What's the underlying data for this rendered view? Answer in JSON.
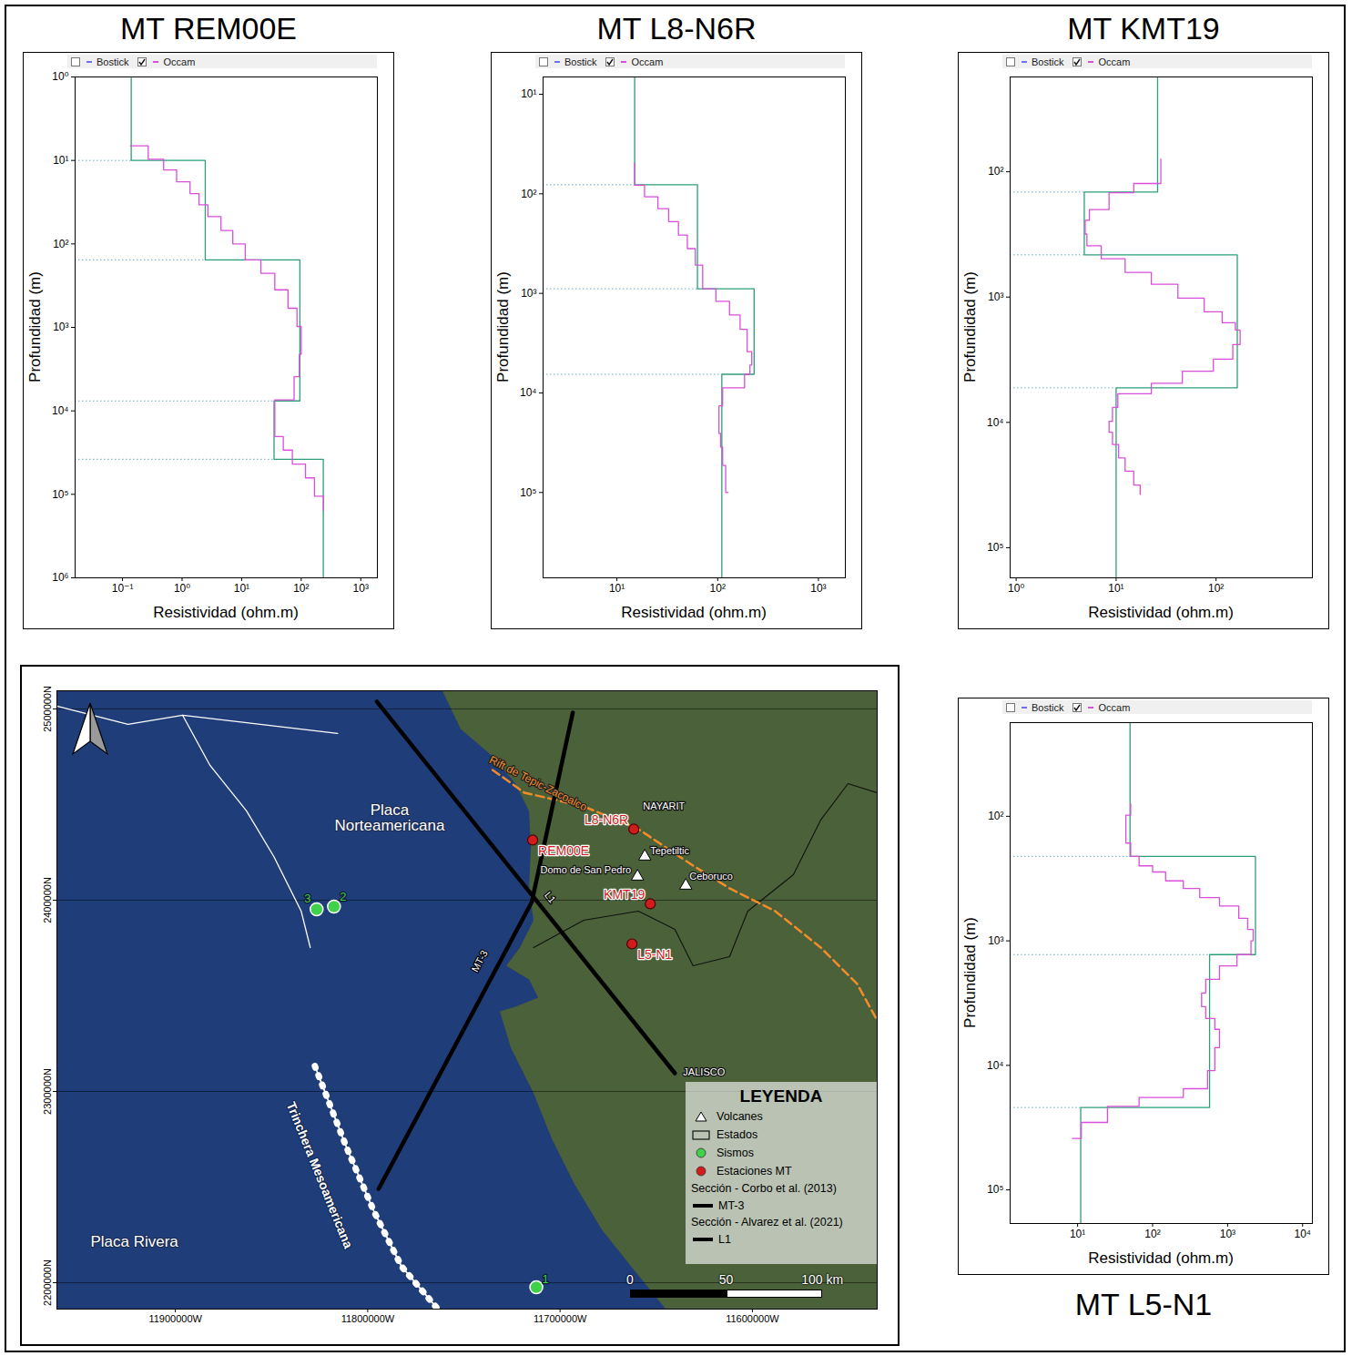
{
  "chart_data": [
    {
      "type": "line",
      "title": "MT REM00E",
      "x_label": "Resistividad (ohm.m)",
      "y_label": "Profundidad (m)",
      "log": true,
      "xlim": [
        0.016,
        1900
      ],
      "ylim": [
        1,
        1000000
      ],
      "xticks": [
        {
          "value": 0.1,
          "label": "10⁻¹"
        },
        {
          "value": 1,
          "label": "10⁰"
        },
        {
          "value": 10,
          "label": "10¹"
        },
        {
          "value": 100,
          "label": "10²"
        },
        {
          "value": 1000,
          "label": "10³"
        }
      ],
      "yticks": [
        {
          "value": 1,
          "label": "10⁰"
        },
        {
          "value": 10,
          "label": "10¹"
        },
        {
          "value": 100,
          "label": "10²"
        },
        {
          "value": 1000,
          "label": "10³"
        },
        {
          "value": 10000,
          "label": "10⁴"
        },
        {
          "value": 100000,
          "label": "10⁵"
        },
        {
          "value": 1000000,
          "label": "10⁶"
        }
      ],
      "series": [
        {
          "name": "Bostick",
          "color": "#6f6ff0",
          "checked": false,
          "line_style": "step",
          "depth": [],
          "resistivity": []
        },
        {
          "name": "Occam",
          "color": "#d94fd9",
          "checked": true,
          "line_style": "step",
          "depth": [
            6.7,
            6.7,
            9.7,
            13,
            18,
            25,
            34,
            47,
            69,
            100,
            155,
            225,
            355,
            590,
            975,
            2100,
            3900,
            7400,
            13800,
            20300,
            29500,
            43500,
            63500,
            105000,
            155000
          ],
          "resistivity": [
            0.136,
            0.27,
            0.49,
            0.81,
            1.36,
            1.92,
            2.71,
            4.5,
            7.1,
            11.5,
            21,
            36,
            60,
            85,
            100,
            93,
            76,
            36,
            36,
            50,
            71,
            118,
            167,
            237,
            237
          ]
        },
        {
          "color": "#2e9e7a",
          "line_style": "step",
          "depth": [
            1,
            10,
            155,
            7600,
            38000,
            1000000
          ],
          "resistivity": [
            0.14,
            2.45,
            95,
            35,
            235,
            235
          ]
        }
      ]
    },
    {
      "type": "line",
      "title": "MT L8-N6R",
      "x_label": "Resistividad (ohm.m)",
      "y_label": "Profundidad (m)",
      "log": true,
      "xlim": [
        1.85,
        1850
      ],
      "ylim": [
        6.7,
        720000
      ],
      "xticks": [
        {
          "value": 10,
          "label": "10¹"
        },
        {
          "value": 100,
          "label": "10²"
        },
        {
          "value": 1000,
          "label": "10³"
        }
      ],
      "yticks": [
        {
          "value": 10,
          "label": "10¹"
        },
        {
          "value": 100,
          "label": "10²"
        },
        {
          "value": 1000,
          "label": "10³"
        },
        {
          "value": 10000,
          "label": "10⁴"
        },
        {
          "value": 100000,
          "label": "10⁵"
        }
      ],
      "series": [
        {
          "name": "Bostick",
          "color": "#6f6ff0",
          "checked": false,
          "line_style": "step",
          "depth": [],
          "resistivity": []
        },
        {
          "name": "Occam",
          "color": "#d94fd9",
          "checked": true,
          "line_style": "step",
          "depth": [
            49,
            82,
            107,
            141,
            190,
            260,
            355,
            520,
            900,
            1200,
            1650,
            2300,
            3850,
            5250,
            6500,
            8900,
            13500,
            18700,
            25500,
            35000,
            53500,
            100000
          ],
          "resistivity": [
            15,
            18.8,
            25.5,
            32.6,
            40.8,
            50,
            60,
            71,
            96,
            131,
            167,
            196,
            218,
            209,
            185,
            112,
            103,
            103,
            107,
            112,
            120,
            127
          ]
        },
        {
          "color": "#2e9e7a",
          "line_style": "step",
          "depth": [
            6.7,
            81,
            900,
            6500,
            720000
          ],
          "resistivity": [
            15,
            63,
            230,
            110,
            110
          ]
        }
      ]
    },
    {
      "type": "line",
      "title": "MT KMT19",
      "x_label": "Resistividad (ohm.m)",
      "y_label": "Profundidad (m)",
      "log": true,
      "xlim": [
        0.87,
        920
      ],
      "ylim": [
        17.5,
        174000
      ],
      "xticks": [
        {
          "value": 1,
          "label": "10⁰"
        },
        {
          "value": 10,
          "label": "10¹"
        },
        {
          "value": 100,
          "label": "10²"
        }
      ],
      "yticks": [
        {
          "value": 100,
          "label": "10²"
        },
        {
          "value": 1000,
          "label": "10³"
        },
        {
          "value": 10000,
          "label": "10⁴"
        },
        {
          "value": 100000,
          "label": "10⁵"
        }
      ],
      "series": [
        {
          "name": "Bostick",
          "color": "#6f6ff0",
          "checked": false,
          "line_style": "step",
          "depth": [],
          "resistivity": []
        },
        {
          "name": "Occam",
          "color": "#d94fd9",
          "checked": true,
          "line_style": "step",
          "depth": [
            79,
            124,
            147,
            200,
            244,
            314,
            390,
            495,
            635,
            790,
            1020,
            1310,
            1600,
            1830,
            2390,
            3130,
            3900,
            4880,
            5900,
            7600,
            9800,
            12000,
            15000,
            19200,
            24500,
            31600,
            37500
          ],
          "resistivity": [
            28,
            15,
            8.5,
            5.4,
            4.9,
            5.1,
            7.1,
            12.3,
            22.5,
            41.5,
            76,
            115,
            156,
            174,
            147,
            94,
            46,
            22.5,
            10.4,
            9.2,
            8.5,
            9.2,
            10.6,
            12.3,
            15,
            17.4,
            17.4
          ]
        },
        {
          "color": "#2e9e7a",
          "line_style": "step",
          "depth": [
            17.5,
            145,
            460,
            5300,
            174000
          ],
          "resistivity": [
            26,
            4.8,
            163,
            10,
            10
          ]
        }
      ]
    },
    {
      "type": "line",
      "title": "MT L5-N1",
      "x_label": "Resistividad (ohm.m)",
      "y_label": "Profundidad (m)",
      "log": true,
      "xlim": [
        1.26,
        13500
      ],
      "ylim": [
        17.7,
        186000
      ],
      "xticks": [
        {
          "value": 10,
          "label": "10¹"
        },
        {
          "value": 100,
          "label": "10²"
        },
        {
          "value": 1000,
          "label": "10³"
        },
        {
          "value": 10000,
          "label": "10⁴"
        }
      ],
      "yticks": [
        {
          "value": 100,
          "label": "10²"
        },
        {
          "value": 1000,
          "label": "10³"
        },
        {
          "value": 10000,
          "label": "10⁴"
        },
        {
          "value": 100000,
          "label": "10⁵"
        }
      ],
      "series": [
        {
          "name": "Bostick",
          "color": "#6f6ff0",
          "checked": false,
          "line_style": "step",
          "depth": [],
          "resistivity": []
        },
        {
          "name": "Occam",
          "color": "#d94fd9",
          "checked": true,
          "line_style": "step",
          "depth": [
            79,
            98,
            164,
            210,
            250,
            280,
            330,
            380,
            450,
            525,
            660,
            810,
            1000,
            1290,
            1590,
            2040,
            2620,
            3380,
            4200,
            5130,
            7200,
            11000,
            15400,
            18100,
            21300,
            28700,
            38600
          ],
          "resistivity": [
            51,
            44,
            51,
            66,
            100,
            149,
            257,
            425,
            780,
            1410,
            1850,
            2190,
            2050,
            1330,
            780,
            510,
            450,
            510,
            675,
            780,
            675,
            540,
            257,
            66,
            25,
            11.2,
            8.5
          ]
        },
        {
          "color": "#2e9e7a",
          "line_style": "step",
          "depth": [
            17.7,
            210,
            1290,
            21800,
            186000
          ],
          "resistivity": [
            50,
            2350,
            575,
            11,
            11
          ]
        }
      ]
    },
    {
      "type": "map",
      "xlim": [
        11961600,
        11535100
      ],
      "ylim": [
        2186200,
        2509500
      ],
      "xticks": [
        {
          "value": 11900000,
          "label": "11900000W"
        },
        {
          "value": 11800000,
          "label": "11800000W"
        },
        {
          "value": 11700000,
          "label": "11700000W"
        },
        {
          "value": 11600000,
          "label": "11600000W"
        }
      ],
      "yticks": [
        {
          "value": 2200000,
          "label": "2200000N"
        },
        {
          "value": 2300000,
          "label": "2300000N"
        },
        {
          "value": 2400000,
          "label": "2400000N"
        },
        {
          "value": 2500000,
          "label": "2500000N"
        }
      ],
      "grid": "y",
      "sea": {
        "color": "#1f3d78"
      },
      "land": {
        "color": "#4a6139",
        "x": [
          11761150,
          11751670,
          11735080,
          11723240,
          11716130,
          11715180,
          11716130,
          11713760,
          11720870,
          11727970,
          11716130,
          11711390,
          11723240,
          11731290,
          11725600,
          11713760,
          11704280,
          11692430,
          11678220,
          11659260,
          11645040,
          11535100,
          11535100
        ],
        "y": [
          2509500,
          2489530,
          2475240,
          2460950,
          2446670,
          2427620,
          2406190,
          2389520,
          2375240,
          2365710,
          2358570,
          2349050,
          2344290,
          2341900,
          2322860,
          2299050,
          2275240,
          2251430,
          2227620,
          2203810,
          2186200,
          2186200,
          2509500
        ]
      },
      "plate_boundaries": [
        {
          "color": "#ffffff",
          "x": [
            11961600,
            11924640,
            11896210,
            11815650
          ],
          "y": [
            2501430,
            2491910,
            2496670,
            2487150
          ]
        },
        {
          "color": "#ffffff",
          "x": [
            11896210,
            11881990,
            11863040,
            11848820,
            11834600,
            11829860
          ],
          "y": [
            2496670,
            2470480,
            2446670,
            2422860,
            2394290,
            2375240
          ]
        }
      ],
      "state_boundaries": [
        {
          "color": "#111111",
          "x": [
            11713760,
            11687690,
            11659260,
            11640300,
            11630830,
            11611870,
            11602390,
            11578700,
            11564480,
            11550260,
            11535100
          ],
          "y": [
            2375240,
            2389520,
            2394290,
            2384760,
            2365710,
            2370480,
            2394290,
            2413330,
            2441910,
            2460950,
            2456190
          ]
        }
      ],
      "rift": {
        "name": "Rift de Tepic-Zacoalco",
        "color": "#f28c28",
        "line_style": "dashed",
        "x": [
          11735080,
          11718500,
          11687690,
          11659260,
          11630830,
          11611870,
          11588170,
          11564480,
          11545520,
          11535100
        ],
        "y": [
          2468100,
          2456190,
          2449050,
          2437140,
          2418100,
          2406190,
          2394290,
          2375240,
          2356190,
          2337140
        ],
        "label_x": 11711390,
        "label_y": 2460950
      },
      "trench": {
        "name": "Trinchera Mesoamericana",
        "color": "#ffffff",
        "x": [
          11827490,
          11810910,
          11796690,
          11782470,
          11763520
        ],
        "y": [
          2313330,
          2270470,
          2237140,
          2208570,
          2186200
        ],
        "label_x": 11825120,
        "label_y": 2256190
      },
      "sections": [
        {
          "name": "MT-3",
          "source": "Sección - Corbo et al. (2013)",
          "color": "#000000",
          "x": [
            11693380,
            11714700,
            11794320
          ],
          "y": [
            2498100,
            2399050,
            2249050
          ],
          "label_x": 11741720,
          "label_y": 2368100
        },
        {
          "name": "L1",
          "source": "Sección - Alvarez et al. (2021)",
          "color": "#000000",
          "x": [
            11795270,
            11640300
          ],
          "y": [
            2503810,
            2309520
          ],
          "label_x": 11705230,
          "label_y": 2401430
        }
      ],
      "stations": {
        "color": "#d01c1c",
        "names": [
          "REM00E",
          "L8-N6R",
          "KMT19",
          "L5-N1"
        ],
        "x": [
          11714230,
          11661630,
          11653100,
          11662580
        ],
        "y": [
          2431430,
          2437140,
          2398100,
          2377140
        ]
      },
      "volcanoes": {
        "color": "#ffffff",
        "names": [
          "Tepetiltic",
          "Domo de San Pedro",
          "Ceboruco"
        ],
        "x": [
          11655940,
          11659730,
          11634620
        ],
        "y": [
          2422860,
          2412380,
          2407620
        ]
      },
      "earthquakes": {
        "color": "#3fd14a",
        "names": [
          "1",
          "2",
          "3"
        ],
        "x": [
          11712340,
          11817540,
          11826550
        ],
        "y": [
          2197620,
          2396670,
          2395240
        ]
      },
      "labels": [
        {
          "text": "Placa Norteamericana",
          "x": 11788630,
          "y": 2442860
        },
        {
          "text": "Placa Rivera",
          "x": 11921330,
          "y": 2221430
        },
        {
          "text": "NAYARIT",
          "x": 11645990,
          "y": 2449050
        },
        {
          "text": "JALISCO",
          "x": 11625140,
          "y": 2310000
        }
      ],
      "legend": "bottom-right",
      "legend_title": "LEYENDA",
      "legend_items": [
        {
          "label": "Volcanes",
          "marker": "triangle",
          "color": "#ffffff"
        },
        {
          "label": "Estados",
          "marker": "square",
          "color": "#111111"
        },
        {
          "label": "Sismos",
          "marker": "circle",
          "color": "#3fd14a"
        },
        {
          "label": "Estaciones MT",
          "marker": "circle",
          "color": "#d01c1c"
        }
      ],
      "scale_bar": [
        {
          "value": 0,
          "label": "0"
        },
        {
          "value": 50,
          "label": "50"
        },
        {
          "value": 100,
          "label": "100 km"
        }
      ]
    }
  ]
}
